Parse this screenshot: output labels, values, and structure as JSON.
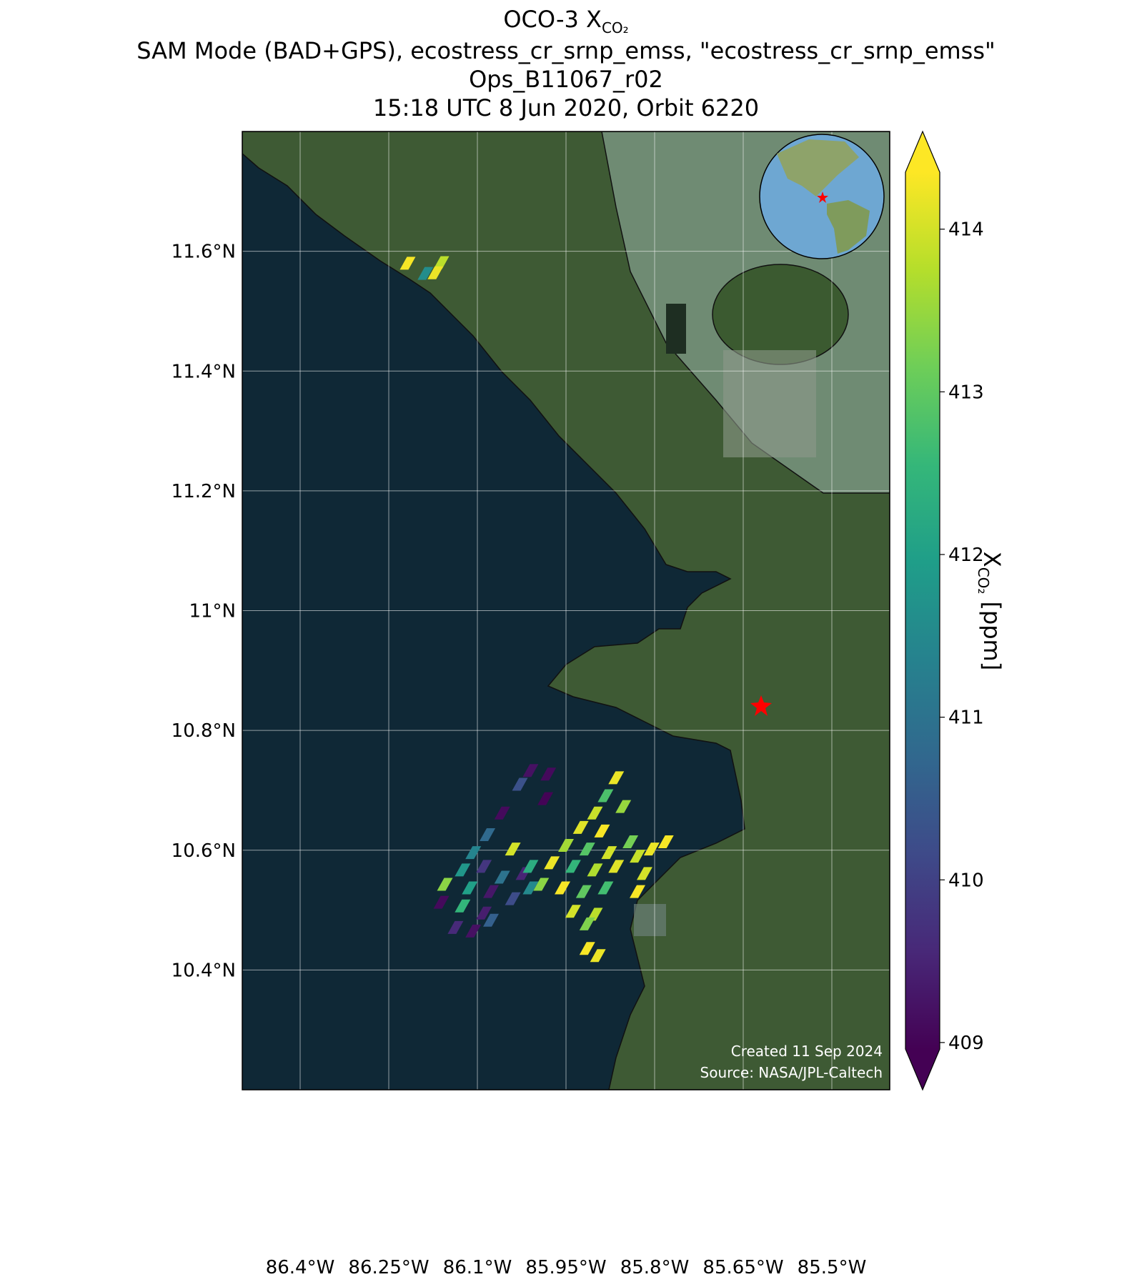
{
  "chart_data": {
    "type": "map",
    "title": [
      "OCO-3 X",
      "SAM Mode (BAD+GPS), ecostress_cr_srnp_emss, \"ecostress_cr_srnp_emss\"",
      "Ops_B11067_r02",
      "15:18 UTC 8 Jun 2020, Orbit 6220"
    ],
    "title_subscript": "CO₂",
    "xlim": [
      -86.498,
      -85.402
    ],
    "ylim": [
      10.2,
      11.8
    ],
    "xticks": [
      {
        "value": -86.4,
        "label": "86.4°W"
      },
      {
        "value": -86.25,
        "label": "86.25°W"
      },
      {
        "value": -86.1,
        "label": "86.1°W"
      },
      {
        "value": -85.95,
        "label": "85.95°W"
      },
      {
        "value": -85.8,
        "label": "85.8°W"
      },
      {
        "value": -85.65,
        "label": "85.65°W"
      },
      {
        "value": -85.5,
        "label": "85.5°W"
      }
    ],
    "yticks": [
      {
        "value": 11.6,
        "label": "11.6°N"
      },
      {
        "value": 11.4,
        "label": "11.4°N"
      },
      {
        "value": 11.2,
        "label": "11.2°N"
      },
      {
        "value": 11.0,
        "label": "11°N"
      },
      {
        "value": 10.8,
        "label": "10.8°N"
      },
      {
        "value": 10.6,
        "label": "10.6°N"
      },
      {
        "value": 10.4,
        "label": "10.4°N"
      }
    ],
    "grid": true,
    "colorbar": {
      "label": "X",
      "label_subscript": "CO₂",
      "label_unit": "[ppm]",
      "clim": [
        408.96,
        414.35
      ],
      "ticks": [
        409,
        410,
        411,
        412,
        413,
        414
      ],
      "colormap": "viridis"
    },
    "footprints": {
      "lon": [
        -86.218,
        -86.188,
        -86.161,
        -86.171,
        -86.01,
        -85.98,
        -86.028,
        -85.985,
        -86.058,
        -86.083,
        -86.107,
        -86.04,
        -86.125,
        -86.089,
        -86.058,
        -86.022,
        -86.155,
        -86.113,
        -86.077,
        -86.04,
        -86.01,
        -86.161,
        -86.125,
        -86.089,
        -86.137,
        -86.107,
        -86.077,
        -86.01,
        -85.865,
        -85.883,
        -85.853,
        -85.901,
        -85.925,
        -85.889,
        -85.95,
        -85.914,
        -85.877,
        -85.841,
        -85.974,
        -85.938,
        -85.901,
        -85.865,
        -85.992,
        -85.956,
        -85.92,
        -85.883,
        -85.938,
        -85.901,
        -85.914,
        -85.829,
        -85.805,
        -85.781,
        -85.817,
        -85.829,
        -85.914,
        -85.896
      ],
      "lat": [
        11.58,
        11.563,
        11.581,
        11.564,
        10.733,
        10.727,
        10.71,
        10.686,
        10.662,
        10.626,
        10.596,
        10.602,
        10.567,
        10.573,
        10.555,
        10.561,
        10.543,
        10.537,
        10.531,
        10.519,
        10.537,
        10.513,
        10.507,
        10.495,
        10.471,
        10.465,
        10.483,
        10.573,
        10.721,
        10.691,
        10.673,
        10.662,
        10.638,
        10.632,
        10.608,
        10.602,
        10.596,
        10.614,
        10.579,
        10.573,
        10.567,
        10.573,
        10.543,
        10.537,
        10.531,
        10.537,
        10.498,
        10.493,
        10.477,
        10.59,
        10.602,
        10.614,
        10.561,
        10.531,
        10.436,
        10.424
      ],
      "values": [
        414.3,
        411.6,
        413.8,
        414.2,
        409.2,
        409.1,
        410.3,
        409.0,
        409.1,
        410.8,
        411.4,
        414.0,
        411.8,
        409.8,
        411.0,
        409.5,
        413.4,
        412.0,
        409.3,
        410.2,
        411.5,
        409.1,
        412.5,
        409.4,
        409.6,
        409.2,
        410.6,
        412.3,
        414.2,
        412.8,
        413.5,
        413.9,
        414.1,
        414.3,
        413.6,
        412.9,
        414.0,
        413.2,
        414.2,
        412.5,
        413.7,
        414.1,
        413.4,
        414.3,
        413.0,
        412.7,
        414.0,
        413.8,
        413.3,
        413.9,
        414.2,
        414.3,
        414.0,
        414.3,
        414.3,
        414.2
      ]
    },
    "credits": [
      "Created 11 Sep 2024",
      "Source: NASA/JPL-Caltech"
    ]
  }
}
